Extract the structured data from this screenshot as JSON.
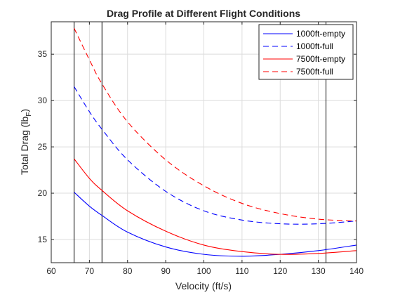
{
  "chart_data": {
    "type": "line",
    "title": "Drag Profile at Different Flight Conditions",
    "xlabel": "Velocity (ft/s)",
    "ylabel": "Total Drag (lb",
    "ylabel_subscript": "F",
    "ylabel_suffix": ")",
    "xlim": [
      60,
      140
    ],
    "ylim": [
      12.5,
      38.5
    ],
    "xticks": [
      60,
      70,
      80,
      90,
      100,
      110,
      120,
      130,
      140
    ],
    "yticks": [
      15,
      20,
      25,
      30,
      35
    ],
    "grid": true,
    "legend_position": "top-right",
    "vertical_lines": [
      66,
      73.3,
      132,
      140
    ],
    "series": [
      {
        "name": "1000ft-empty",
        "color": "#0000ff",
        "dash": "solid",
        "x": [
          66,
          70,
          73.3,
          80,
          90,
          100,
          110,
          120,
          130,
          140
        ],
        "y": [
          20.1,
          18.6,
          17.6,
          15.8,
          14.2,
          13.4,
          13.2,
          13.4,
          13.8,
          14.4
        ]
      },
      {
        "name": "1000ft-full",
        "color": "#0000ff",
        "dash": "dashed",
        "x": [
          66,
          70,
          73.3,
          80,
          90,
          100,
          110,
          120,
          130,
          140
        ],
        "y": [
          31.5,
          28.8,
          26.9,
          23.6,
          20.2,
          18.1,
          17.1,
          16.7,
          16.7,
          17.0
        ]
      },
      {
        "name": "7500ft-empty",
        "color": "#ff0000",
        "dash": "solid",
        "x": [
          66,
          70,
          73.3,
          80,
          90,
          100,
          110,
          120,
          130,
          140
        ],
        "y": [
          23.7,
          21.6,
          20.3,
          18.1,
          15.9,
          14.4,
          13.7,
          13.4,
          13.5,
          13.8
        ]
      },
      {
        "name": "7500ft-full",
        "color": "#ff0000",
        "dash": "dashed",
        "x": [
          66,
          70,
          73.3,
          80,
          90,
          100,
          110,
          120,
          130,
          140
        ],
        "y": [
          37.8,
          34.4,
          31.8,
          27.7,
          23.6,
          20.8,
          18.9,
          17.8,
          17.2,
          17.0
        ]
      }
    ]
  }
}
